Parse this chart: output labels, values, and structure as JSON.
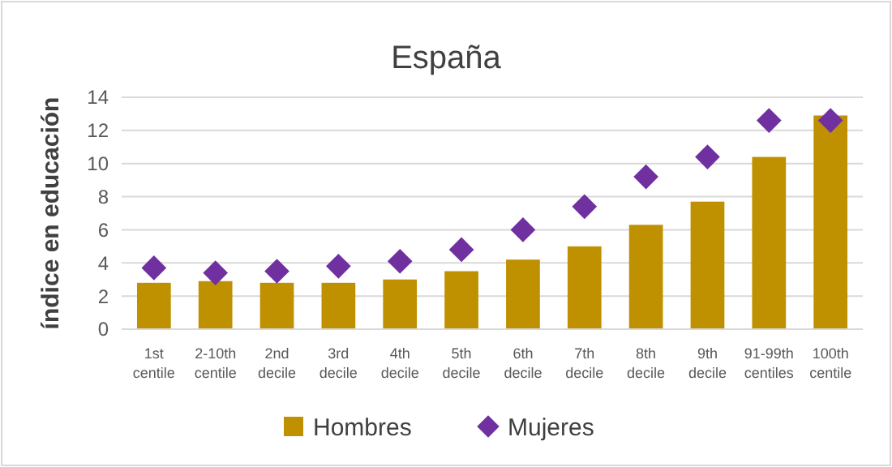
{
  "chart_data": {
    "type": "bar",
    "title": "España",
    "ylabel": "índice en educación",
    "categories": [
      "1st\ncentile",
      "2-10th\ncentile",
      "2nd\ndecile",
      "3rd\ndecile",
      "4th\ndecile",
      "5th\ndecile",
      "6th\ndecile",
      "7th\ndecile",
      "8th\ndecile",
      "9th\ndecile",
      "91-99th\ncentiles",
      "100th\ncentile"
    ],
    "series": [
      {
        "name": "Hombres",
        "color": "#bf9000",
        "values": [
          2.8,
          2.9,
          2.8,
          2.8,
          3.0,
          3.5,
          4.2,
          5.0,
          6.3,
          7.7,
          10.4,
          12.9
        ]
      },
      {
        "name": "Mujeres",
        "type": "scatter",
        "color": "#7030a0",
        "values": [
          3.7,
          3.4,
          3.5,
          3.8,
          4.1,
          4.8,
          6.0,
          7.4,
          9.2,
          10.4,
          12.6,
          12.6
        ]
      }
    ],
    "ylim": [
      0,
      14
    ],
    "yticks": [
      0,
      2,
      4,
      6,
      8,
      10,
      12,
      14
    ],
    "grid": "y",
    "legend": "bottom",
    "marker": "diamond"
  }
}
